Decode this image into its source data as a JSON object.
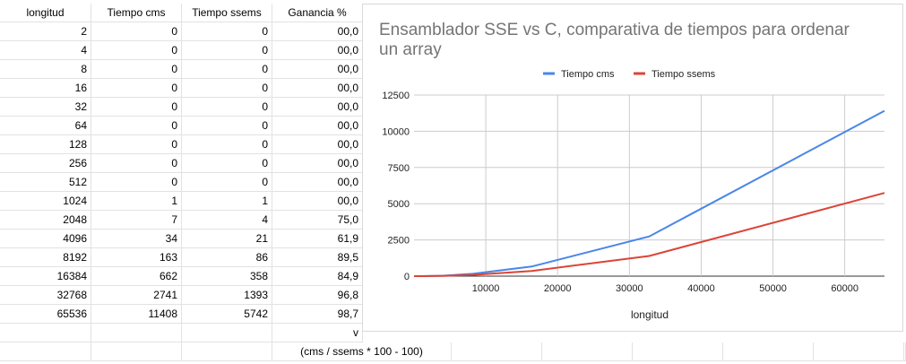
{
  "sheet": {
    "headers": [
      "longitud",
      "Tiempo cms",
      "Tiempo ssems",
      "Ganancia %"
    ],
    "rows": [
      [
        "2",
        "0",
        "0",
        "00,0"
      ],
      [
        "4",
        "0",
        "0",
        "00,0"
      ],
      [
        "8",
        "0",
        "0",
        "00,0"
      ],
      [
        "16",
        "0",
        "0",
        "00,0"
      ],
      [
        "32",
        "0",
        "0",
        "00,0"
      ],
      [
        "64",
        "0",
        "0",
        "00,0"
      ],
      [
        "128",
        "0",
        "0",
        "00,0"
      ],
      [
        "256",
        "0",
        "0",
        "00,0"
      ],
      [
        "512",
        "0",
        "0",
        "00,0"
      ],
      [
        "1024",
        "1",
        "1",
        "00,0"
      ],
      [
        "2048",
        "7",
        "4",
        "75,0"
      ],
      [
        "4096",
        "34",
        "21",
        "61,9"
      ],
      [
        "8192",
        "163",
        "86",
        "89,5"
      ],
      [
        "16384",
        "662",
        "358",
        "84,9"
      ],
      [
        "32768",
        "2741",
        "1393",
        "96,8"
      ],
      [
        "65536",
        "11408",
        "5742",
        "98,7"
      ]
    ],
    "extra_v": "v",
    "formula_note": "(cms / ssems * 100 - 100)"
  },
  "chart_data": {
    "type": "line",
    "title": "Ensamblador SSE vs C, comparativa de tiempos para ordenar un array",
    "title_lines": [
      "Ensamblador SSE vs C, comparativa de tiempos para ordenar",
      "un array"
    ],
    "xlabel": "longitud",
    "ylabel": "",
    "x": [
      2,
      4,
      8,
      16,
      32,
      64,
      128,
      256,
      512,
      1024,
      2048,
      4096,
      8192,
      16384,
      32768,
      65536
    ],
    "series": [
      {
        "name": "Tiempo cms",
        "color": "#4a86e8",
        "values": [
          0,
          0,
          0,
          0,
          0,
          0,
          0,
          0,
          0,
          1,
          7,
          34,
          163,
          662,
          2741,
          11408
        ]
      },
      {
        "name": "Tiempo ssems",
        "color": "#db4437",
        "values": [
          0,
          0,
          0,
          0,
          0,
          0,
          0,
          0,
          0,
          1,
          4,
          21,
          86,
          358,
          1393,
          5742
        ]
      }
    ],
    "xlim": [
      0,
      65536
    ],
    "ylim": [
      0,
      12500
    ],
    "xticks": [
      10000,
      20000,
      30000,
      40000,
      50000,
      60000
    ],
    "yticks": [
      0,
      2500,
      5000,
      7500,
      10000,
      12500
    ],
    "grid": true,
    "legend": "top"
  }
}
